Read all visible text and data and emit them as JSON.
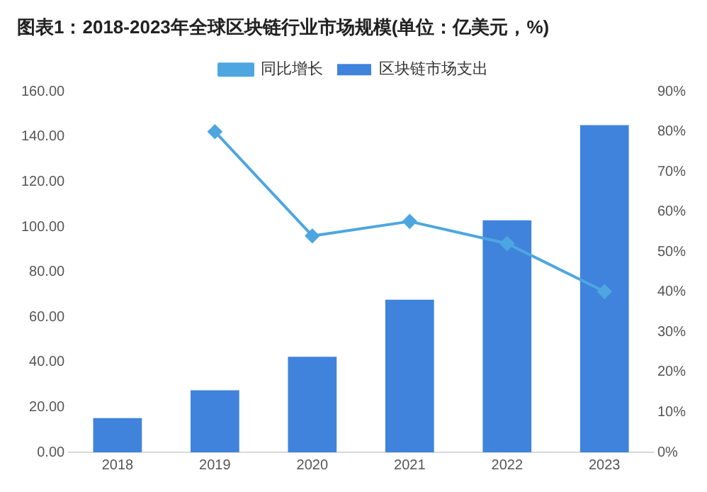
{
  "chart_data": {
    "type": "bar",
    "title": "图表1：2018-2023年全球区块链行业市场规模(单位：亿美元，%)",
    "categories": [
      "2018",
      "2019",
      "2020",
      "2021",
      "2022",
      "2023"
    ],
    "series": [
      {
        "name": "区块链市场支出",
        "color": "#3f83dc",
        "values": [
          15.2,
          27.5,
          42.4,
          67.7,
          102.9,
          145.1
        ]
      },
      {
        "name": "同比增长",
        "type": "line",
        "axis": "y2",
        "color": "#4ea6e0",
        "marker": "diamond",
        "values": [
          null,
          80,
          54,
          57.6,
          52.1,
          40.1
        ]
      }
    ],
    "ylim": [
      0,
      160
    ],
    "yticks": [
      {
        "value": 0,
        "label": "0.00"
      },
      {
        "value": 20,
        "label": "20.00"
      },
      {
        "value": 40,
        "label": "40.00"
      },
      {
        "value": 60,
        "label": "60.00"
      },
      {
        "value": 80,
        "label": "80.00"
      },
      {
        "value": 100,
        "label": "100.00"
      },
      {
        "value": 120,
        "label": "120.00"
      },
      {
        "value": 140,
        "label": "140.00"
      },
      {
        "value": 160,
        "label": "160.00"
      }
    ],
    "y2lim": [
      0,
      90
    ],
    "y2ticks": [
      {
        "value": 0,
        "label": "0%"
      },
      {
        "value": 10,
        "label": "10%"
      },
      {
        "value": 20,
        "label": "20%"
      },
      {
        "value": 30,
        "label": "30%"
      },
      {
        "value": 40,
        "label": "40%"
      },
      {
        "value": 50,
        "label": "50%"
      },
      {
        "value": 60,
        "label": "60%"
      },
      {
        "value": 70,
        "label": "70%"
      },
      {
        "value": 80,
        "label": "80%"
      },
      {
        "value": 90,
        "label": "90%"
      }
    ],
    "grid": false,
    "legend": "top"
  }
}
